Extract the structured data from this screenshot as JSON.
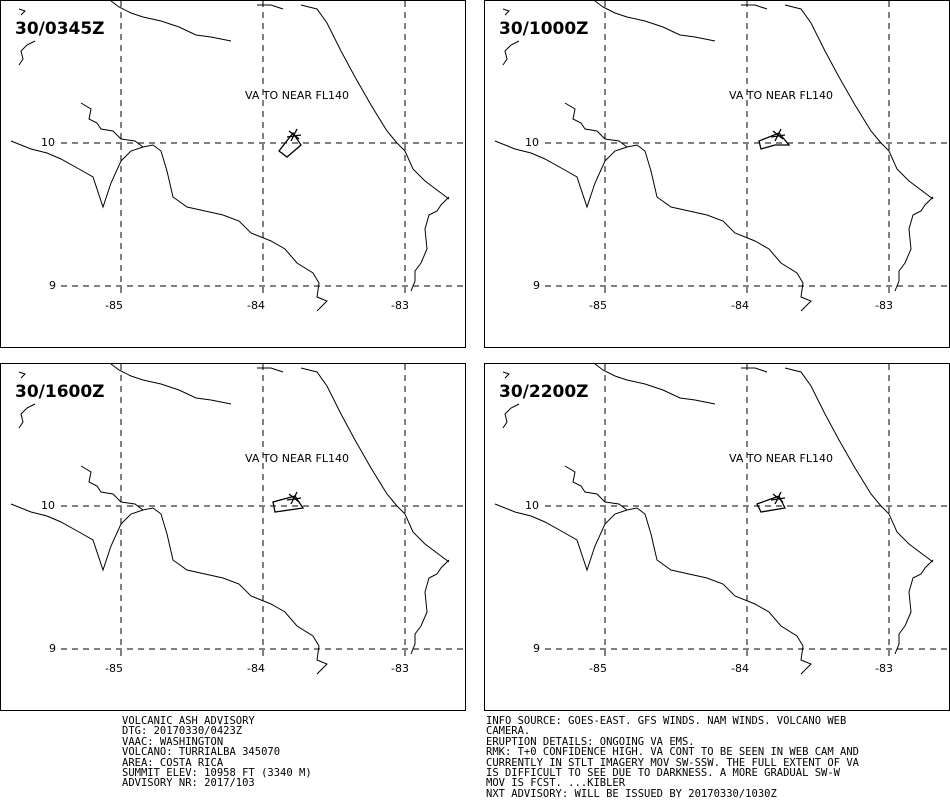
{
  "panels": [
    {
      "time": "30/0345Z",
      "va_text": "VA TO NEAR FL140",
      "plume": "a"
    },
    {
      "time": "30/1000Z",
      "va_text": "VA TO NEAR FL140",
      "plume": "b"
    },
    {
      "time": "30/1600Z",
      "va_text": "VA TO NEAR FL140",
      "plume": "c"
    },
    {
      "time": "30/2200Z",
      "va_text": "VA TO NEAR FL140",
      "plume": "d"
    }
  ],
  "ticks": {
    "lat_10": "10",
    "lat_9": "9",
    "lon_85": "-85",
    "lon_84": "-84",
    "lon_83": "-83"
  },
  "advisory_left": [
    "VOLCANIC ASH ADVISORY",
    "DTG: 20170330/0423Z",
    "VAAC: WASHINGTON",
    "VOLCANO: TURRIALBA 345070",
    "AREA: COSTA RICA",
    "SUMMIT ELEV: 10958 FT (3340 M)",
    "ADVISORY NR: 2017/103"
  ],
  "advisory_right": [
    "INFO SOURCE: GOES-EAST. GFS WINDS. NAM WINDS. VOLCANO WEB",
    "CAMERA.",
    "ERUPTION DETAILS: ONGOING VA EMS.",
    "RMK: T+0 CONFIDENCE HIGH. VA CONT TO BE SEEN IN WEB CAM AND",
    "CURRENTLY IN STLT IMAGERY MOV SW-SSW. THE FULL EXTENT OF VA",
    "IS DIFFICULT TO SEE DUE TO DARKNESS. A MORE GRADUAL SW-W",
    "MOV IS FCST. ...KIBLER",
    "NXT ADVISORY: WILL BE ISSUED BY 20170330/1030Z"
  ]
}
